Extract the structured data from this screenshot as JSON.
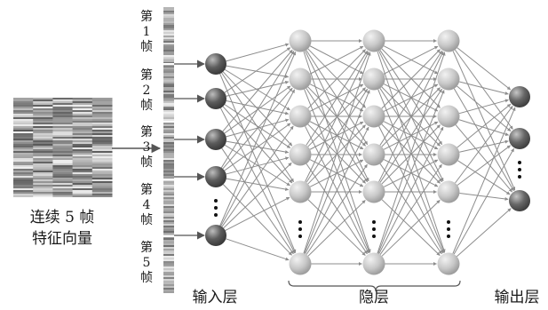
{
  "input_caption": {
    "line1": "连续 5 帧",
    "line2": "特征向量"
  },
  "frames": [
    {
      "chars": [
        "第",
        "1",
        "帧"
      ]
    },
    {
      "chars": [
        "第",
        "2",
        "帧"
      ]
    },
    {
      "chars": [
        "第",
        "3",
        "帧"
      ]
    },
    {
      "chars": [
        "第",
        "4",
        "帧"
      ]
    },
    {
      "chars": [
        "第",
        "5",
        "帧"
      ]
    }
  ],
  "layers": {
    "input": "输入层",
    "hidden": "隐层",
    "output": "输出层"
  },
  "colors": {
    "edge": "#8c8c8c",
    "arrow": "#555555",
    "input_node": "#5a5a5a",
    "hidden_node": "#c4c4c4",
    "output_node": "#6a6a6a"
  }
}
